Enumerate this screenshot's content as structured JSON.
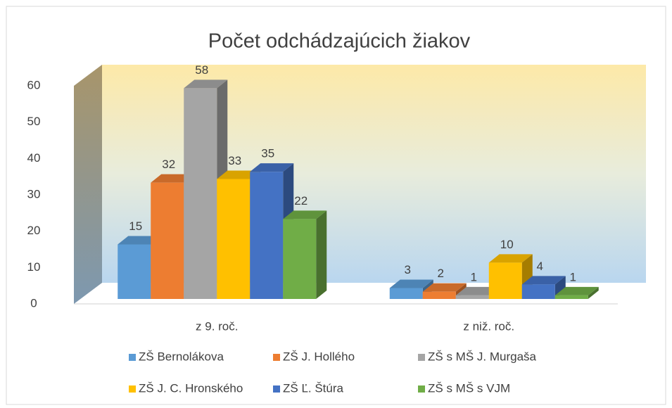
{
  "chart_data": {
    "type": "bar3d",
    "title": "Počet odchádzajúcich žiakov",
    "categories": [
      "z 9. roč.",
      "z niž. roč."
    ],
    "series": [
      {
        "name": "ZŠ Bernolákova",
        "color": "#5b9bd5",
        "values": [
          15,
          3
        ]
      },
      {
        "name": "ZŠ J. Hollého",
        "color": "#ed7d31",
        "values": [
          32,
          2
        ]
      },
      {
        "name": "ZŠ s MŠ J. Murgaša",
        "color": "#a5a5a5",
        "values": [
          58,
          1
        ]
      },
      {
        "name": "ZŠ J. C. Hronského",
        "color": "#ffc000",
        "values": [
          33,
          10
        ]
      },
      {
        "name": "ZŠ Ľ. Štúra",
        "color": "#4472c4",
        "values": [
          35,
          4
        ]
      },
      {
        "name": "ZŠ s MŠ s VJM",
        "color": "#70ad47",
        "values": [
          22,
          1
        ]
      }
    ],
    "ylim": [
      0,
      60
    ],
    "yticks": [
      0,
      10,
      20,
      30,
      40,
      50,
      60
    ]
  }
}
